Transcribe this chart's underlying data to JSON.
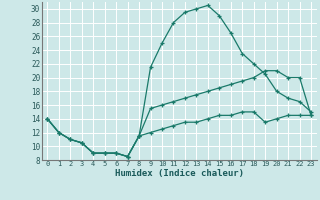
{
  "xlabel": "Humidex (Indice chaleur)",
  "bg_color": "#cde8e8",
  "line_color": "#1a7a6a",
  "grid_color": "#ffffff",
  "xlim": [
    -0.5,
    23.5
  ],
  "ylim": [
    8,
    31
  ],
  "yticks": [
    8,
    10,
    12,
    14,
    16,
    18,
    20,
    22,
    24,
    26,
    28,
    30
  ],
  "xticks": [
    0,
    1,
    2,
    3,
    4,
    5,
    6,
    7,
    8,
    9,
    10,
    11,
    12,
    13,
    14,
    15,
    16,
    17,
    18,
    19,
    20,
    21,
    22,
    23
  ],
  "series": [
    [
      14,
      12,
      11,
      10.5,
      9,
      9,
      9,
      8.5,
      11.5,
      21.5,
      25,
      28,
      29.5,
      30,
      30.5,
      29,
      26.5,
      23.5,
      22,
      20.5,
      18,
      17,
      16.5,
      15
    ],
    [
      14,
      12,
      11,
      10.5,
      9,
      9,
      9,
      8.5,
      11.5,
      15.5,
      16,
      16.5,
      17,
      17.5,
      18,
      18.5,
      19,
      19.5,
      20,
      21,
      21,
      20,
      20,
      14.5
    ],
    [
      14,
      12,
      11,
      10.5,
      9,
      9,
      9,
      8.5,
      11.5,
      12,
      12.5,
      13,
      13.5,
      13.5,
      14,
      14.5,
      14.5,
      15,
      15,
      13.5,
      14,
      14.5,
      14.5,
      14.5
    ]
  ]
}
